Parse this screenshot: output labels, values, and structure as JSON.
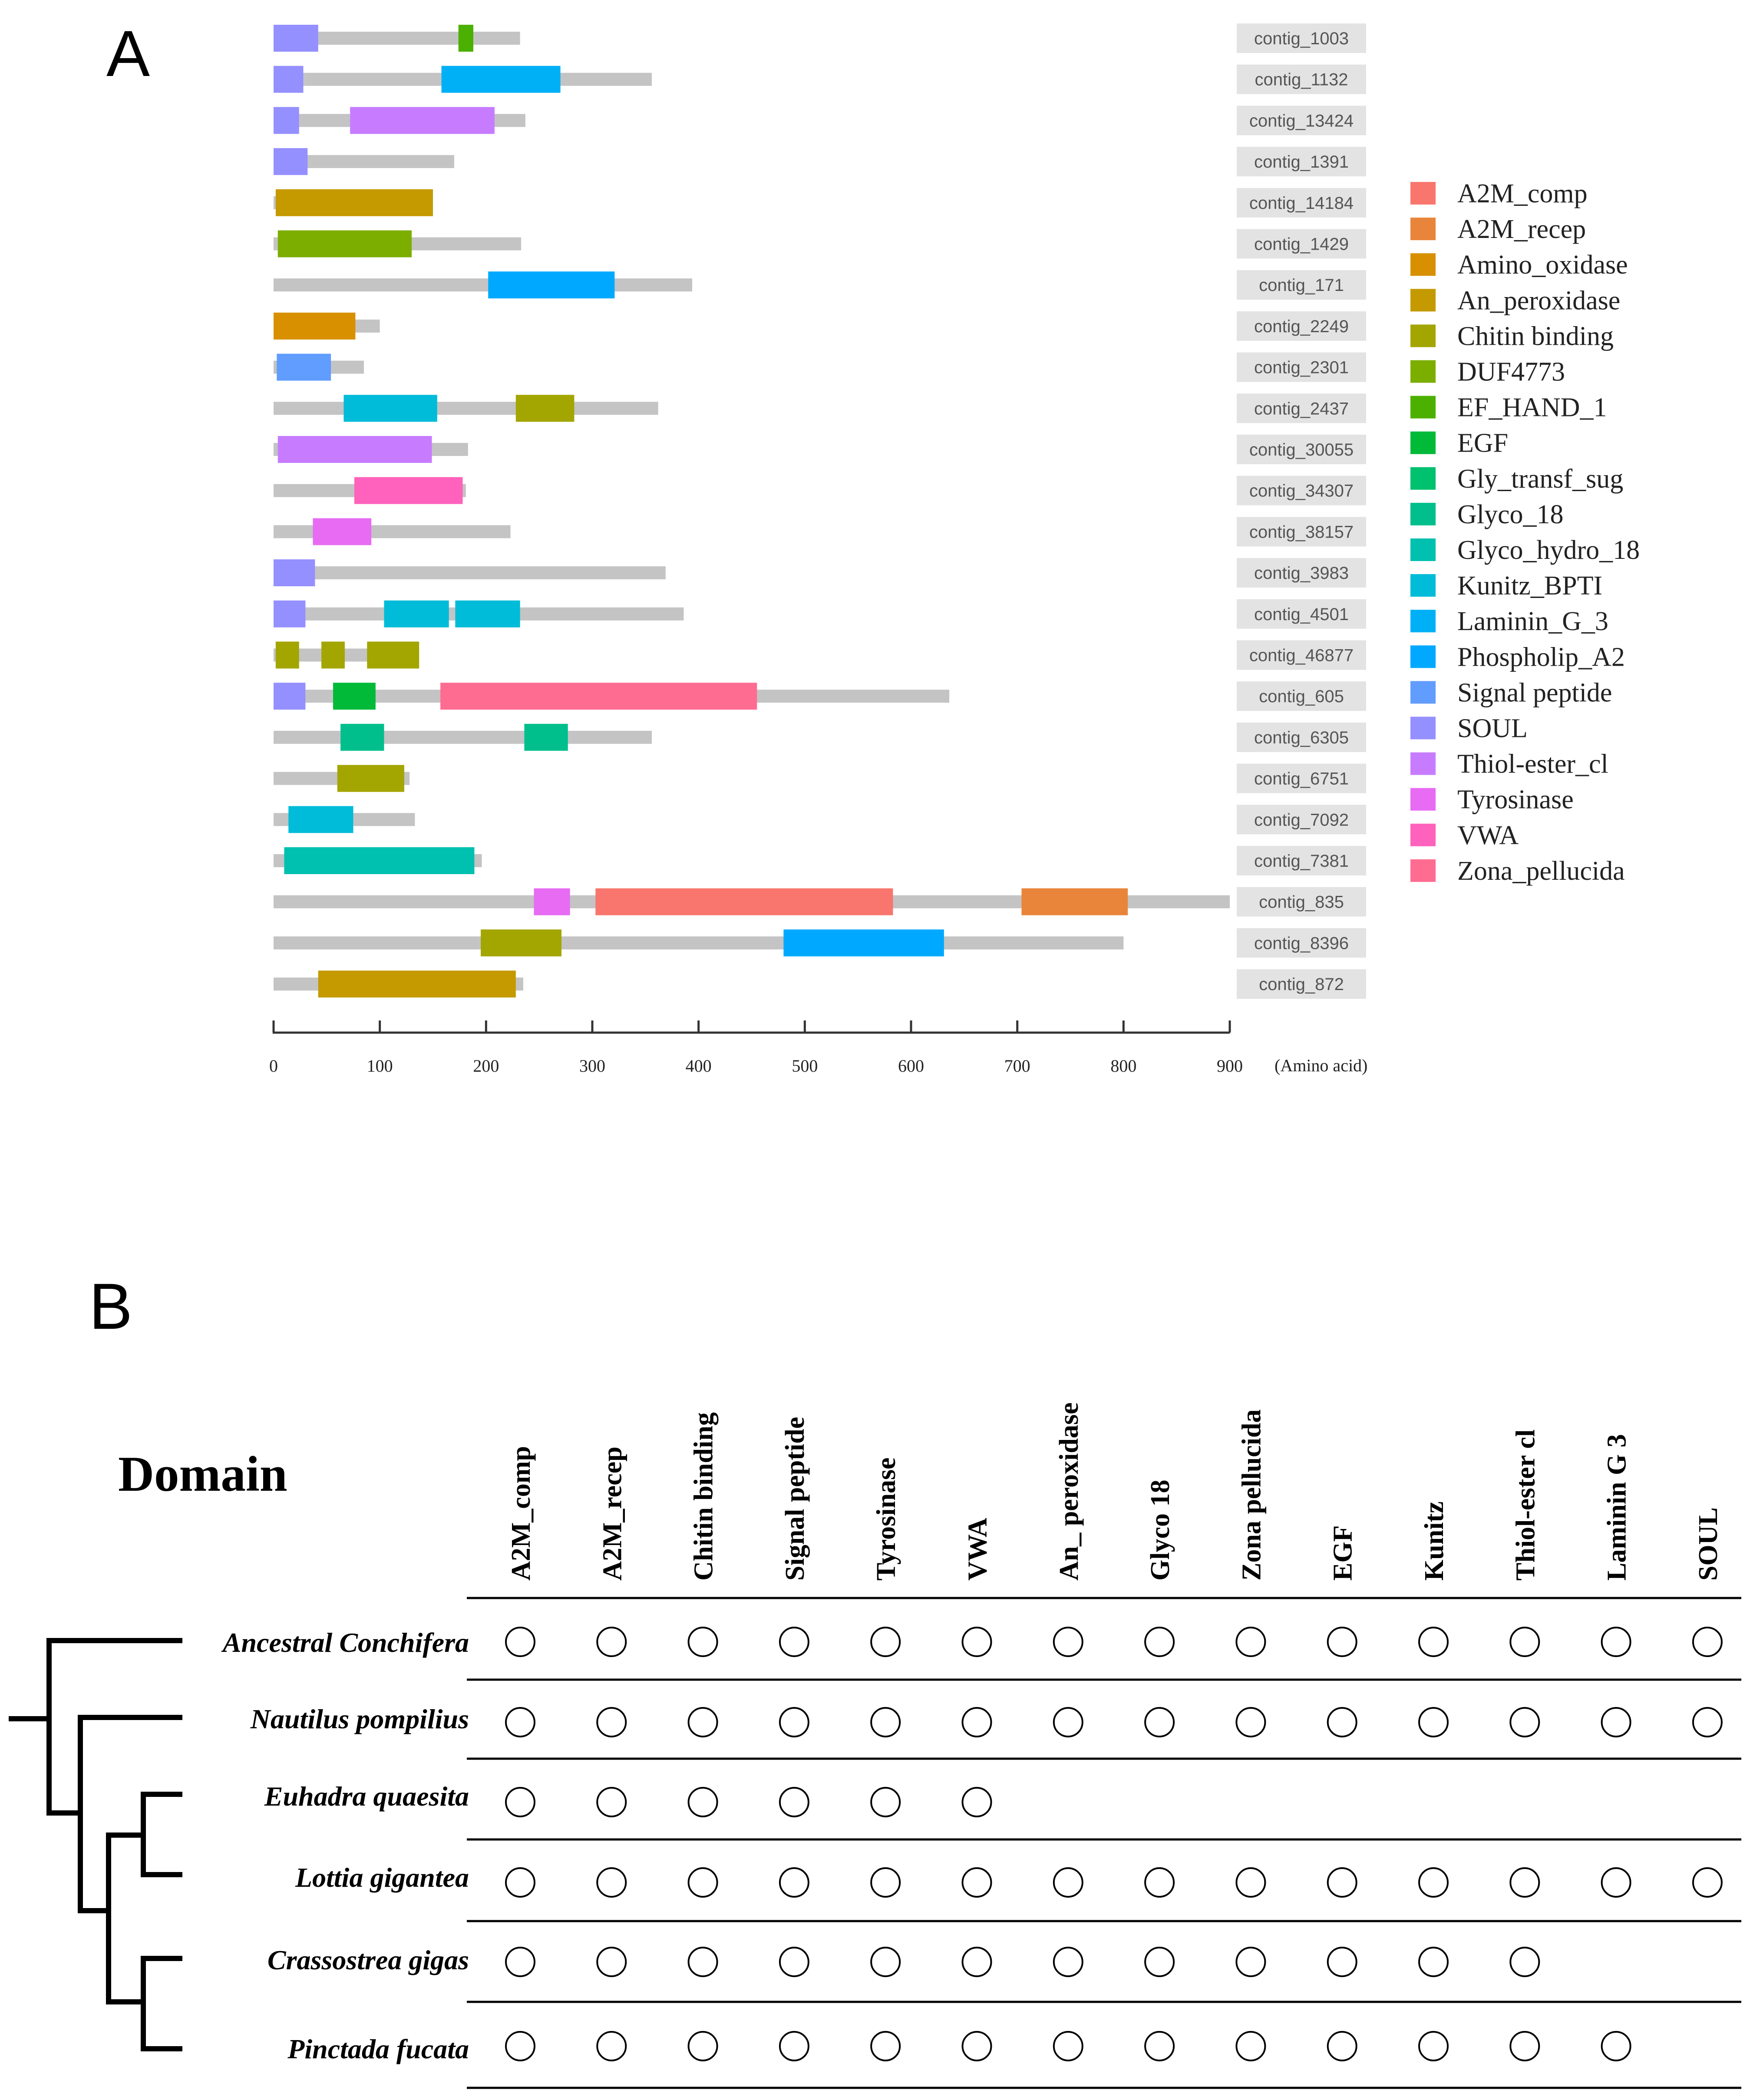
{
  "panel_a": {
    "letter": "A",
    "axis_unit_label": "(Amino acid)",
    "axis_max": 900,
    "ticks": [
      "0",
      "100",
      "200",
      "300",
      "400",
      "500",
      "600",
      "700",
      "800",
      "900"
    ],
    "tick_values": [
      0,
      100,
      200,
      300,
      400,
      500,
      600,
      700,
      800,
      900
    ],
    "domain_colors": {
      "A2M_comp": "#F8766D",
      "A2M_recep": "#E8853A",
      "Amino_oxidase": "#D89000",
      "An_peroxidase": "#C49A00",
      "Chitin binding": "#A3A500",
      "DUF4773": "#7CAE00",
      "EF_HAND_1": "#4CB000",
      "EGF": "#00BA38",
      "Gly_transf_sug": "#00C16E",
      "Glyco_18": "#00BF8C",
      "Glyco_hydro_18": "#00C0AF",
      "Kunitz_BPTI": "#00BCD8",
      "Laminin_G_3": "#00B0F6",
      "Phospholip_A2": "#00A9FF",
      "Signal peptide": "#619CFF",
      "SOUL": "#9590FF",
      "Thiol-ester_cl": "#C77CFF",
      "Tyrosinase": "#E76BF3",
      "VWA": "#FF62BC",
      "Zona_pellucida": "#FF6C91"
    },
    "legend": [
      "A2M_comp",
      "A2M_recep",
      "Amino_oxidase",
      "An_peroxidase",
      "Chitin binding",
      "DUF4773",
      "EF_HAND_1",
      "EGF",
      "Gly_transf_sug",
      "Glyco_18",
      "Glyco_hydro_18",
      "Kunitz_BPTI",
      "Laminin_G_3",
      "Phospholip_A2",
      "Signal peptide",
      "SOUL",
      "Thiol-ester_cl",
      "Tyrosinase",
      "VWA",
      "Zona_pellucida"
    ],
    "contigs": [
      {
        "name": "contig_1003",
        "length": 232,
        "domains": [
          {
            "type": "SOUL",
            "start": 0,
            "end": 42
          },
          {
            "type": "EF_HAND_1",
            "start": 174,
            "end": 188
          }
        ]
      },
      {
        "name": "contig_1132",
        "length": 356,
        "domains": [
          {
            "type": "SOUL",
            "start": 0,
            "end": 28
          },
          {
            "type": "Laminin_G_3",
            "start": 158,
            "end": 270
          }
        ]
      },
      {
        "name": "contig_13424",
        "length": 237,
        "domains": [
          {
            "type": "SOUL",
            "start": 0,
            "end": 24
          },
          {
            "type": "Thiol-ester_cl",
            "start": 72,
            "end": 208
          }
        ]
      },
      {
        "name": "contig_1391",
        "length": 170,
        "domains": [
          {
            "type": "SOUL",
            "start": 0,
            "end": 32
          }
        ]
      },
      {
        "name": "contig_14184",
        "length": 150,
        "domains": [
          {
            "type": "An_peroxidase",
            "start": 2,
            "end": 150
          }
        ]
      },
      {
        "name": "contig_1429",
        "length": 233,
        "domains": [
          {
            "type": "DUF4773",
            "start": 4,
            "end": 130
          }
        ]
      },
      {
        "name": "contig_171",
        "length": 394,
        "domains": [
          {
            "type": "Phospholip_A2",
            "start": 202,
            "end": 321
          }
        ]
      },
      {
        "name": "contig_2249",
        "length": 100,
        "domains": [
          {
            "type": "Amino_oxidase",
            "start": 0,
            "end": 77
          }
        ]
      },
      {
        "name": "contig_2301",
        "length": 85,
        "domains": [
          {
            "type": "Signal peptide",
            "start": 3,
            "end": 54
          }
        ]
      },
      {
        "name": "contig_2437",
        "length": 362,
        "domains": [
          {
            "type": "Kunitz_BPTI",
            "start": 66,
            "end": 154
          },
          {
            "type": "Chitin binding",
            "start": 228,
            "end": 283
          }
        ]
      },
      {
        "name": "contig_30055",
        "length": 183,
        "domains": [
          {
            "type": "Thiol-ester_cl",
            "start": 4,
            "end": 149
          }
        ]
      },
      {
        "name": "contig_34307",
        "length": 181,
        "domains": [
          {
            "type": "VWA",
            "start": 76,
            "end": 178
          }
        ]
      },
      {
        "name": "contig_38157",
        "length": 223,
        "domains": [
          {
            "type": "Tyrosinase",
            "start": 37,
            "end": 92
          }
        ]
      },
      {
        "name": "contig_3983",
        "length": 369,
        "domains": [
          {
            "type": "SOUL",
            "start": 0,
            "end": 39
          }
        ]
      },
      {
        "name": "contig_4501",
        "length": 386,
        "domains": [
          {
            "type": "SOUL",
            "start": 0,
            "end": 30
          },
          {
            "type": "Kunitz_BPTI",
            "start": 104,
            "end": 165
          },
          {
            "type": "Kunitz_BPTI",
            "start": 171,
            "end": 232
          }
        ]
      },
      {
        "name": "contig_46877",
        "length": 136,
        "domains": [
          {
            "type": "Chitin binding",
            "start": 2,
            "end": 24
          },
          {
            "type": "Chitin binding",
            "start": 45,
            "end": 67
          },
          {
            "type": "Chitin binding",
            "start": 88,
            "end": 137
          }
        ]
      },
      {
        "name": "contig_605",
        "length": 636,
        "domains": [
          {
            "type": "SOUL",
            "start": 0,
            "end": 30
          },
          {
            "type": "EGF",
            "start": 56,
            "end": 96
          },
          {
            "type": "Zona_pellucida",
            "start": 157,
            "end": 455
          }
        ]
      },
      {
        "name": "contig_6305",
        "length": 356,
        "domains": [
          {
            "type": "Glyco_18",
            "start": 63,
            "end": 104
          },
          {
            "type": "Glyco_18",
            "start": 236,
            "end": 277
          }
        ]
      },
      {
        "name": "contig_6751",
        "length": 128,
        "domains": [
          {
            "type": "Chitin binding",
            "start": 60,
            "end": 123
          }
        ]
      },
      {
        "name": "contig_7092",
        "length": 133,
        "domains": [
          {
            "type": "Kunitz_BPTI",
            "start": 14,
            "end": 75
          }
        ]
      },
      {
        "name": "contig_7381",
        "length": 196,
        "domains": [
          {
            "type": "Glyco_hydro_18",
            "start": 10,
            "end": 189
          }
        ]
      },
      {
        "name": "contig_835",
        "length": 900,
        "domains": [
          {
            "type": "Tyrosinase",
            "start": 245,
            "end": 279
          },
          {
            "type": "A2M_comp",
            "start": 303,
            "end": 583
          },
          {
            "type": "A2M_recep",
            "start": 704,
            "end": 804
          }
        ]
      },
      {
        "name": "contig_8396",
        "length": 800,
        "domains": [
          {
            "type": "Chitin binding",
            "start": 195,
            "end": 271
          },
          {
            "type": "Phospholip_A2",
            "start": 480,
            "end": 631
          }
        ]
      },
      {
        "name": "contig_872",
        "length": 235,
        "domains": [
          {
            "type": "An_peroxidase",
            "start": 42,
            "end": 228
          }
        ]
      }
    ]
  },
  "panel_b": {
    "letter": "B",
    "title": "Domain",
    "columns": [
      "A2M_comp",
      "A2M_recep",
      "Chitin binding",
      "Signal peptide",
      "Tyrosinase",
      "VWA",
      "An_ peroxidase",
      "Glyco 18",
      "Zona pellucida",
      "EGF",
      "Kunitz",
      "Thiol-ester cl",
      "Laminin G 3",
      "SOUL"
    ],
    "rows": [
      {
        "species": "Ancestral Conchifera",
        "present": [
          1,
          1,
          1,
          1,
          1,
          1,
          1,
          1,
          1,
          1,
          1,
          1,
          1,
          1
        ]
      },
      {
        "species": "Nautilus pompilius",
        "present": [
          1,
          1,
          1,
          1,
          1,
          1,
          1,
          1,
          1,
          1,
          1,
          1,
          1,
          1
        ]
      },
      {
        "species": "Euhadra quaesita",
        "present": [
          1,
          1,
          1,
          1,
          1,
          1,
          0,
          0,
          0,
          0,
          0,
          0,
          0,
          0
        ]
      },
      {
        "species": "Lottia gigantea",
        "present": [
          1,
          1,
          1,
          1,
          1,
          1,
          1,
          1,
          1,
          1,
          1,
          1,
          1,
          1
        ]
      },
      {
        "species": "Crassostrea gigas",
        "present": [
          1,
          1,
          1,
          1,
          1,
          1,
          1,
          1,
          1,
          1,
          1,
          1,
          0,
          0
        ]
      },
      {
        "species": "Pinctada fucata",
        "present": [
          1,
          1,
          1,
          1,
          1,
          1,
          1,
          1,
          1,
          1,
          1,
          1,
          1,
          0
        ]
      }
    ]
  }
}
